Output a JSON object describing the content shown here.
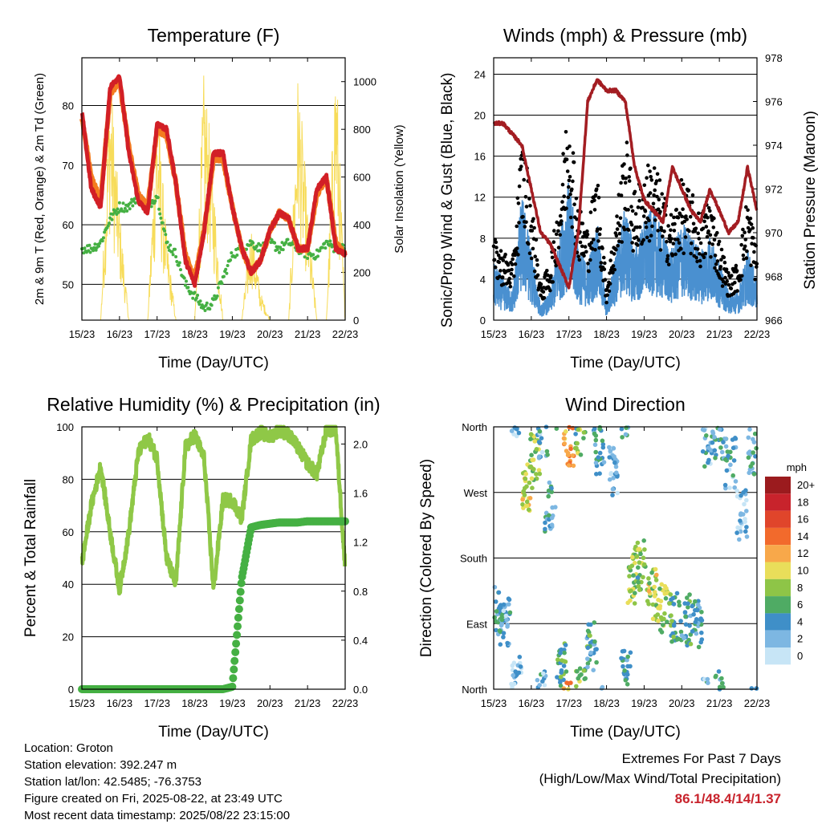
{
  "chart_data": [
    {
      "type": "line",
      "title": "Temperature (F)",
      "xlabel": "Time (Day/UTC)",
      "ylabel": "2m & 9m T (Red, Orange) & 2m Td (Green)",
      "y2label": "Solar Insolation (Yellow)",
      "x_ticks": [
        "15/23",
        "16/23",
        "17/23",
        "18/23",
        "19/23",
        "20/23",
        "21/23",
        "22/23"
      ],
      "ylim": [
        44,
        88
      ],
      "yticks": [
        50,
        60,
        70,
        80
      ],
      "y2lim": [
        0,
        1100
      ],
      "y2ticks": [
        0,
        200,
        400,
        600,
        800,
        1000
      ],
      "x_days": [
        0,
        0.25,
        0.5,
        0.75,
        1,
        1.25,
        1.5,
        1.75,
        2,
        2.25,
        2.5,
        2.75,
        3,
        3.25,
        3.5,
        3.75,
        4,
        4.25,
        4.5,
        4.75,
        5,
        5.25,
        5.5,
        5.75,
        6,
        6.25,
        6.5,
        6.75,
        7
      ],
      "series": [
        {
          "name": "2m T",
          "color": "#d21f26",
          "values": [
            79,
            66,
            63,
            83,
            85,
            72,
            64,
            62,
            77,
            76,
            67,
            54,
            50,
            59,
            72,
            72,
            63,
            56,
            52,
            54,
            59,
            62,
            61,
            56,
            56,
            66,
            68,
            56,
            55
          ]
        },
        {
          "name": "9m T",
          "color": "#f47c20",
          "values": [
            78,
            68,
            64,
            82,
            84,
            73,
            65,
            63,
            76,
            75,
            67,
            55,
            51,
            59,
            71,
            71,
            63,
            56,
            52,
            54,
            59,
            62,
            61,
            56,
            56,
            65,
            68,
            57,
            55
          ]
        },
        {
          "name": "2m Td",
          "color": "#45b043",
          "values": [
            56,
            56,
            57,
            61,
            63,
            63,
            65,
            63,
            65,
            57,
            55,
            50,
            48,
            46,
            47,
            51,
            55,
            56,
            57,
            56,
            57,
            56,
            57,
            56,
            55,
            55,
            57,
            56,
            56
          ]
        },
        {
          "name": "Solar Insolation",
          "color": "#f7dc5a",
          "values": [
            0,
            0,
            0,
            900,
            400,
            0,
            0,
            0,
            800,
            300,
            0,
            0,
            0,
            900,
            500,
            0,
            0,
            0,
            350,
            100,
            0,
            0,
            0,
            900,
            400,
            0,
            0,
            1000,
            0
          ]
        }
      ]
    },
    {
      "type": "scatter",
      "title": "Winds (mph) & Pressure (mb)",
      "xlabel": "Time (Day/UTC)",
      "ylabel": "Sonic/Prop Wind & Gust (Blue, Black)",
      "y2label": "Station Pressure (Maroon)",
      "x_ticks": [
        "15/23",
        "16/23",
        "17/23",
        "18/23",
        "19/23",
        "20/23",
        "21/23",
        "22/23"
      ],
      "ylim": [
        0,
        25.6
      ],
      "yticks": [
        0,
        4,
        8,
        12,
        16,
        20,
        24
      ],
      "y2lim": [
        966,
        978
      ],
      "y2ticks": [
        966,
        968,
        970,
        972,
        974,
        976,
        978
      ],
      "x_days": [
        0,
        0.25,
        0.5,
        0.75,
        1,
        1.25,
        1.5,
        1.75,
        2,
        2.25,
        2.5,
        2.75,
        3,
        3.25,
        3.5,
        3.75,
        4,
        4.25,
        4.5,
        4.75,
        5,
        5.25,
        5.5,
        5.75,
        6,
        6.25,
        6.5,
        6.75,
        7
      ],
      "series": [
        {
          "name": "Wind",
          "color": "#4a90d0",
          "values": [
            4,
            3,
            2,
            9,
            5,
            1,
            2,
            6,
            10,
            5,
            4,
            7,
            1,
            5,
            8,
            5,
            7,
            8,
            6,
            5,
            7,
            6,
            5,
            6,
            4,
            2,
            2,
            5,
            3
          ]
        },
        {
          "name": "Gust",
          "color": "#000000",
          "values": [
            7,
            6,
            5,
            16,
            11,
            3,
            5,
            11,
            20,
            10,
            8,
            13,
            3,
            9,
            16,
            11,
            13,
            14,
            11,
            9,
            12,
            11,
            9,
            11,
            7,
            4,
            5,
            11,
            6
          ]
        },
        {
          "name": "Station Pressure",
          "color": "#a31d22",
          "values": [
            975,
            975,
            974.5,
            974,
            972,
            970,
            969.5,
            968.5,
            967.5,
            970,
            976,
            977,
            976.5,
            976.5,
            976,
            973,
            971.5,
            971,
            970.5,
            973,
            972,
            971,
            970.5,
            972,
            971,
            970,
            970.5,
            973,
            971
          ]
        }
      ]
    },
    {
      "type": "line",
      "title": "Relative Humidity (%) & Precipitation (in)",
      "xlabel": "Time (Day/UTC)",
      "ylabel": "Percent & Total Rainfall",
      "x_ticks": [
        "15/23",
        "16/23",
        "17/23",
        "18/23",
        "19/23",
        "20/23",
        "21/23",
        "22/23"
      ],
      "ylim": [
        0,
        100
      ],
      "yticks": [
        0,
        20,
        40,
        60,
        80,
        100
      ],
      "y2lim": [
        0,
        2.14
      ],
      "y2ticks": [
        "0.0",
        "0.4",
        "0.8",
        "1.2",
        "1.6",
        "2.0"
      ],
      "x_days": [
        0,
        0.25,
        0.5,
        0.75,
        1,
        1.25,
        1.5,
        1.75,
        2,
        2.25,
        2.5,
        2.75,
        3,
        3.25,
        3.5,
        3.75,
        4,
        4.25,
        4.5,
        4.75,
        5,
        5.25,
        5.5,
        5.75,
        6,
        6.25,
        6.5,
        6.75,
        7
      ],
      "series": [
        {
          "name": "Relative Humidity",
          "color": "#8fc847",
          "values": [
            48,
            70,
            85,
            60,
            38,
            60,
            90,
            96,
            88,
            50,
            40,
            92,
            97,
            88,
            38,
            72,
            72,
            65,
            95,
            98,
            96,
            99,
            97,
            92,
            86,
            82,
            99,
            99,
            46
          ]
        },
        {
          "name": "Total Precipitation",
          "color": "#45b043",
          "values": [
            0,
            0,
            0,
            0,
            0,
            0,
            0,
            0,
            0,
            0,
            0,
            0,
            0,
            0,
            0,
            0,
            0.02,
            0.9,
            1.32,
            1.34,
            1.35,
            1.36,
            1.36,
            1.36,
            1.37,
            1.37,
            1.37,
            1.37,
            1.37
          ]
        }
      ]
    },
    {
      "type": "scatter",
      "title": "Wind Direction",
      "xlabel": "Time (Day/UTC)",
      "ylabel": "Direction (Colored By Speed)",
      "x_ticks": [
        "15/23",
        "16/23",
        "17/23",
        "18/23",
        "19/23",
        "20/23",
        "21/23",
        "22/23"
      ],
      "yticks": [
        "North",
        "East",
        "South",
        "West",
        "North"
      ],
      "ylim": [
        0,
        360
      ],
      "legend_title": "mph",
      "legend_labels": [
        "20+",
        "18",
        "16",
        "14",
        "12",
        "10",
        "8",
        "6",
        "4",
        "2",
        "0"
      ],
      "legend_colors": [
        "#9b1b1e",
        "#c8232c",
        "#e0452b",
        "#f26a2c",
        "#f8a84a",
        "#e9de5a",
        "#8ec547",
        "#4fab64",
        "#3f8fc8",
        "#7db7e2",
        "#c7e5f6"
      ],
      "x_days": [
        0.1,
        0.3,
        0.6,
        0.9,
        1.1,
        1.3,
        1.5,
        1.8,
        2.0,
        2.3,
        2.6,
        2.8,
        3.2,
        3.5,
        3.7,
        3.9,
        4.2,
        4.5,
        4.8,
        5.1,
        5.4,
        5.7,
        6.0,
        6.3,
        6.6,
        6.9
      ],
      "direction": [
        110,
        90,
        20,
        280,
        320,
        350,
        250,
        30,
        340,
        355,
        60,
        330,
        300,
        20,
        150,
        170,
        130,
        110,
        100,
        95,
        90,
        340,
        350,
        310,
        240,
        330
      ],
      "speed": [
        4,
        3,
        2,
        10,
        8,
        3,
        4,
        6,
        12,
        7,
        5,
        4,
        2,
        4,
        8,
        7,
        9,
        8,
        6,
        5,
        4,
        3,
        4,
        3,
        2,
        4
      ]
    }
  ],
  "info": {
    "location": "Location: Groton",
    "elevation": "Station elevation: 392.247 m",
    "latlon": "Station lat/lon: 42.5485; -76.3753",
    "created": "Figure created on Fri, 2025-08-22, at 23:49 UTC",
    "recent": "Most recent data timestamp: 2025/08/22 23:15:00"
  },
  "extremes": {
    "heading": "Extremes For Past 7 Days",
    "subheading": "(High/Low/Max Wind/Total Precipitation)",
    "values": "86.1/48.4/14/1.37"
  }
}
